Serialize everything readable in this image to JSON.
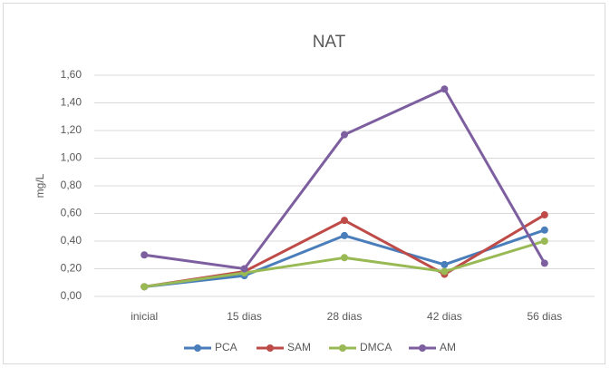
{
  "chart_data": {
    "type": "line",
    "title": "NAT",
    "y_label": "mg/L",
    "categories": [
      "inicial",
      "15 dias",
      "28 dias",
      "42 dias",
      "56 dias"
    ],
    "series": [
      {
        "name": "PCA",
        "color": "#4a7ebb",
        "values": [
          0.07,
          0.15,
          0.44,
          0.23,
          0.48
        ]
      },
      {
        "name": "SAM",
        "color": "#be4b48",
        "values": [
          0.07,
          0.18,
          0.55,
          0.16,
          0.59
        ]
      },
      {
        "name": "DMCA",
        "color": "#98b954",
        "values": [
          0.07,
          0.17,
          0.28,
          0.18,
          0.4
        ]
      },
      {
        "name": "AM",
        "color": "#7d5fa0",
        "values": [
          0.3,
          0.2,
          1.17,
          1.5,
          0.24
        ]
      }
    ],
    "ylim": [
      0,
      1.6
    ],
    "yticks": [
      {
        "value": 0,
        "label": "0,00"
      },
      {
        "value": 0.2,
        "label": "0,20"
      },
      {
        "value": 0.4,
        "label": "0,40"
      },
      {
        "value": 0.6,
        "label": "0,60"
      },
      {
        "value": 0.8,
        "label": "0,80"
      },
      {
        "value": 1.0,
        "label": "1,00"
      },
      {
        "value": 1.2,
        "label": "1,20"
      },
      {
        "value": 1.4,
        "label": "1,40"
      },
      {
        "value": 1.6,
        "label": "1,60"
      }
    ],
    "grid": true,
    "legend": "bottom"
  }
}
